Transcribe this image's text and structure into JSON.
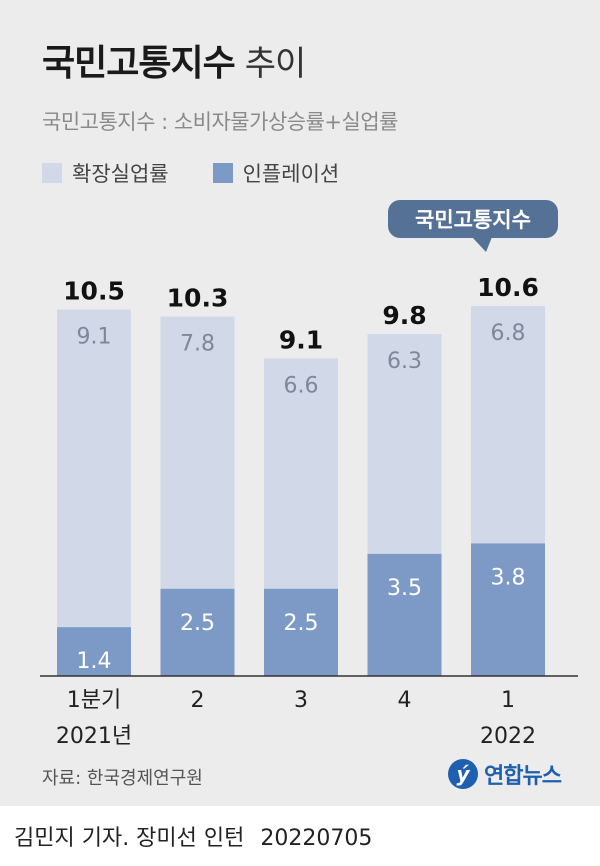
{
  "header": {
    "title": "국민고통지수",
    "title_suffix": "추이",
    "subtitle": "국민고통지수 : 소비자물가상승률+실업률"
  },
  "legend": {
    "items": [
      {
        "label": "확장실업률",
        "color": "#d1d8e8"
      },
      {
        "label": "인플레이션",
        "color": "#7d9ac6"
      }
    ]
  },
  "chart_data": {
    "type": "bar",
    "stacked": true,
    "categories": [
      "1분기\n2021년",
      "2",
      "3",
      "4",
      "1\n2022"
    ],
    "series": [
      {
        "name": "인플레이션",
        "values": [
          1.4,
          2.5,
          2.5,
          3.5,
          3.8
        ],
        "color": "#7d9ac6"
      },
      {
        "name": "확장실업률",
        "values": [
          9.1,
          7.8,
          6.6,
          6.3,
          6.8
        ],
        "color": "#d1d8e8"
      }
    ],
    "totals": [
      "10.5",
      "10.3",
      "9.1",
      "9.8",
      "10.6"
    ],
    "series_labels": [
      [
        "1.4",
        "2.5",
        "2.5",
        "3.5",
        "3.8"
      ],
      [
        "9.1",
        "7.8",
        "6.6",
        "6.3",
        "6.8"
      ]
    ],
    "callout": {
      "text": "국민고통지수",
      "category_index": 4,
      "color": "#557196"
    },
    "ylim": [
      0,
      10.6
    ],
    "grid": false
  },
  "source": "자료: 한국경제연구원",
  "logo": {
    "mark": "ý",
    "name": "연합뉴스"
  },
  "footer": {
    "credit": "김민지 기자. 장미선 인턴",
    "date": "20220705"
  }
}
